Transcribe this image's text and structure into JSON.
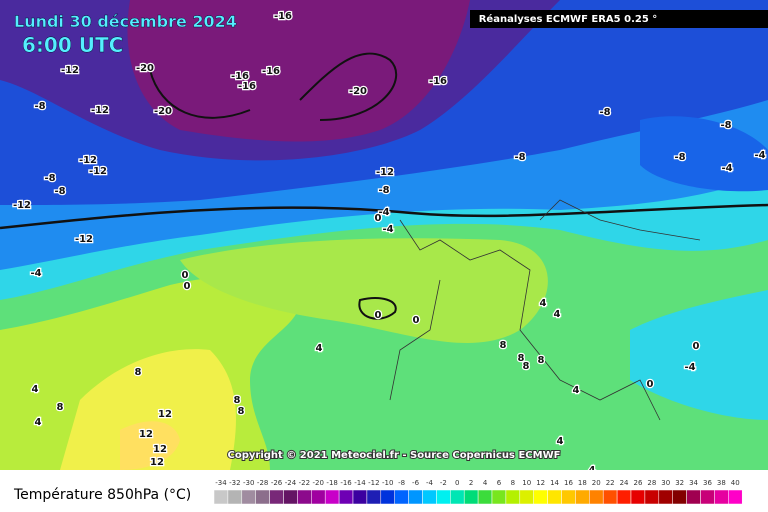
{
  "header": {
    "title": "Lundi 30 décembre 2024",
    "time": "6:00 UTC",
    "source": "Réanalyses ECMWF ERA5 0.25 °",
    "copyright": "Copyright © 2021 Meteociel.fr - Source Copernicus ECMWF"
  },
  "contour_labels": [
    -16,
    -20,
    -16,
    -16,
    -16,
    -20,
    -20,
    -16,
    -12,
    -8,
    -12,
    -8,
    -8,
    -8,
    -8,
    -4,
    -4,
    -12,
    -12,
    -8,
    -8,
    -12,
    -12,
    -12,
    -8,
    -4,
    0,
    -4,
    -4,
    0,
    0,
    0,
    0,
    4,
    4,
    4,
    8,
    8,
    8,
    8,
    0,
    -4,
    4,
    0,
    8,
    4,
    8,
    4,
    8,
    8,
    12,
    12,
    12,
    12,
    4,
    4
  ],
  "legend": {
    "title": "Température 850hPa (°C)",
    "ticks": [
      -34,
      -32,
      -30,
      -28,
      -26,
      -24,
      -22,
      -20,
      -18,
      -16,
      -14,
      -12,
      -10,
      -8,
      -6,
      -4,
      -2,
      0,
      2,
      4,
      6,
      8,
      10,
      12,
      14,
      16,
      18,
      20,
      22,
      24,
      26,
      28,
      30,
      32,
      34,
      36,
      38,
      40
    ],
    "colors": [
      "#c8c8c8",
      "#b4b4b4",
      "#a08ca0",
      "#8c6e8c",
      "#782878",
      "#641464",
      "#8c0a8c",
      "#a000a0",
      "#c800c8",
      "#6e00b4",
      "#3c00a0",
      "#1e1eb4",
      "#0032dc",
      "#0064ff",
      "#0096ff",
      "#00c8ff",
      "#00f0f0",
      "#00e6b4",
      "#00dc78",
      "#3cdc3c",
      "#78e61e",
      "#b4f000",
      "#dcf000",
      "#ffff00",
      "#ffe600",
      "#ffc800",
      "#ffaa00",
      "#ff8200",
      "#ff5000",
      "#ff1e00",
      "#e60000",
      "#c80000",
      "#a00000",
      "#820000",
      "#a00050",
      "#c80078",
      "#e600a0",
      "#ff00c8"
    ]
  }
}
